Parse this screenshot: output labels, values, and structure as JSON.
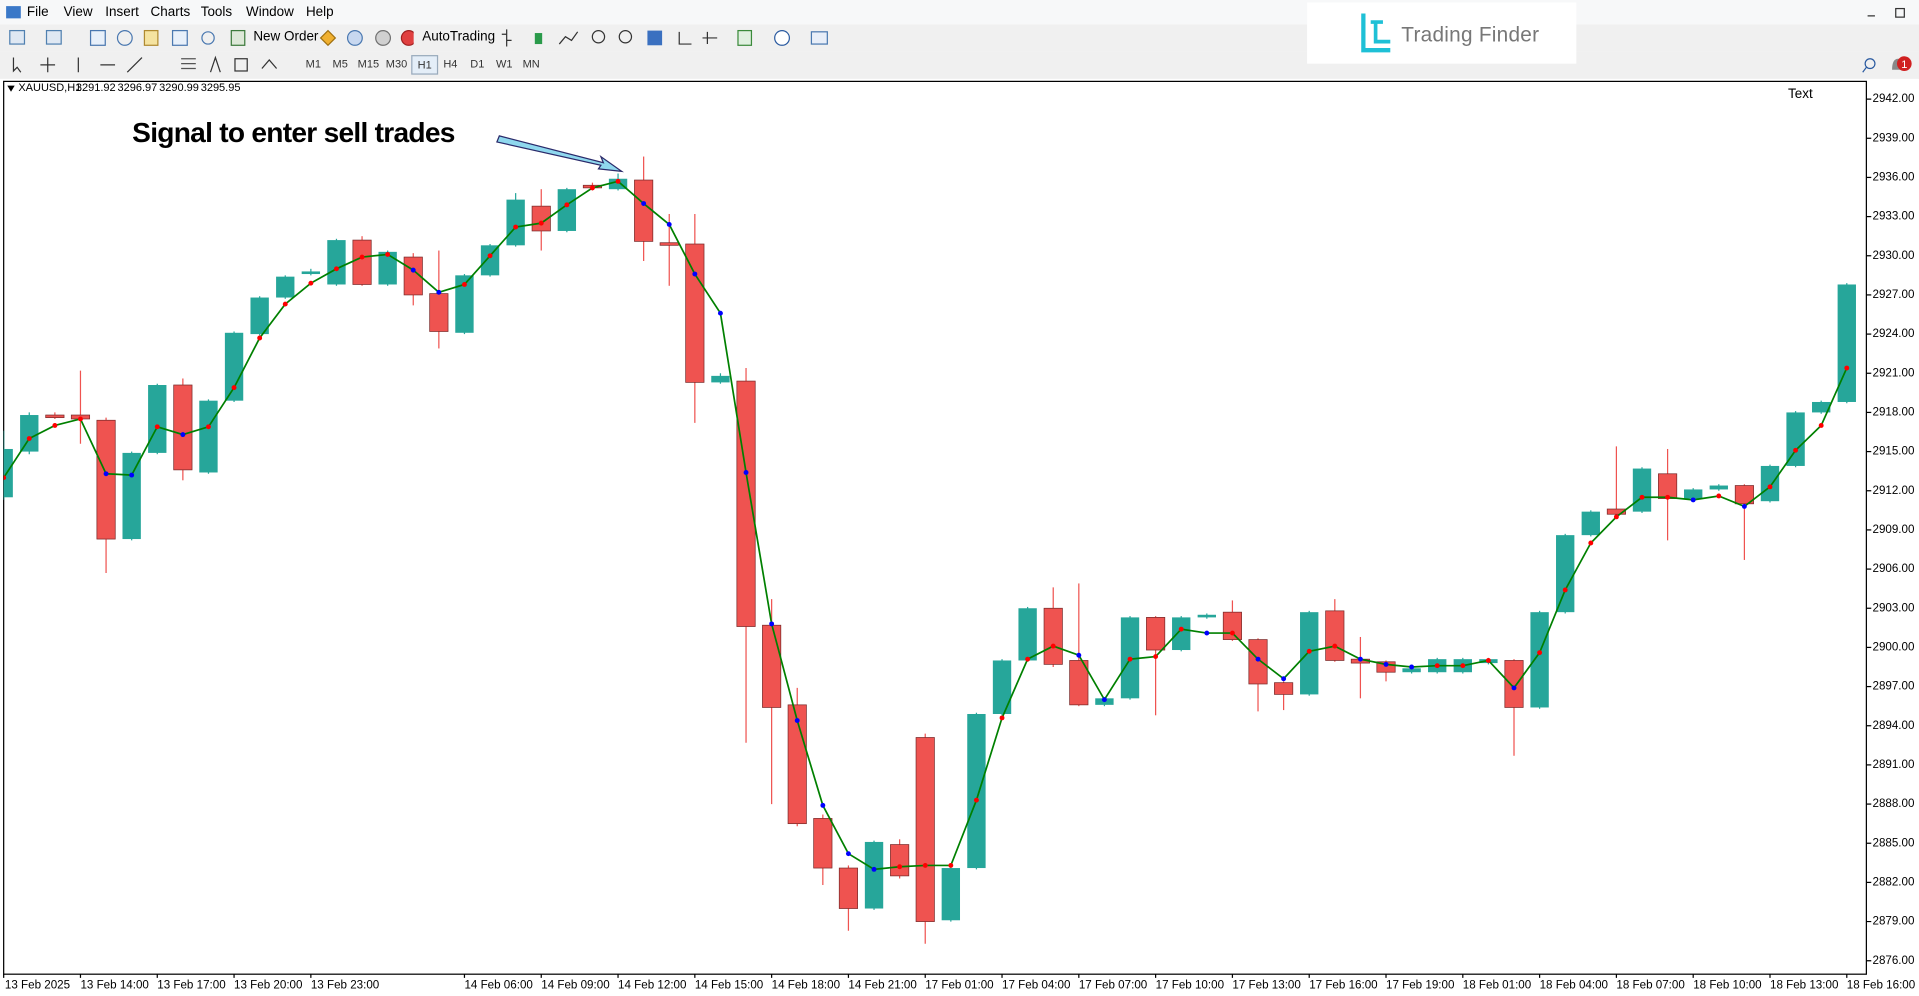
{
  "ui": {
    "menu": [
      "File",
      "View",
      "Insert",
      "Charts",
      "Tools",
      "Window",
      "Help"
    ],
    "new_order": "New Order",
    "autotrading": "AutoTrading",
    "timeframes": [
      "M1",
      "M5",
      "M15",
      "M30",
      "H1",
      "H4",
      "D1",
      "W1",
      "MN"
    ],
    "brand": "Trading Finder",
    "notifications": 1,
    "symbol": "XAUUSD,H1",
    "quote": [
      3291.92,
      3296.97,
      3290.99,
      3295.95
    ],
    "text_label": "Text"
  },
  "chart_data": {
    "type": "candlestick",
    "annotation": "Signal to enter sell trades",
    "categories": [
      "13 Feb 2025",
      null,
      null,
      "13 Feb 14:00",
      null,
      null,
      "13 Feb 17:00",
      null,
      null,
      "13 Feb 20:00",
      null,
      null,
      "13 Feb 23:00",
      null,
      null,
      null,
      null,
      null,
      "14 Feb 06:00",
      null,
      null,
      "14 Feb 09:00",
      null,
      null,
      "14 Feb 12:00",
      null,
      null,
      "14 Feb 15:00",
      null,
      null,
      "14 Feb 18:00",
      null,
      null,
      "14 Feb 21:00",
      null,
      null,
      "17 Feb 01:00",
      null,
      null,
      "17 Feb 04:00",
      null,
      null,
      "17 Feb 07:00",
      null,
      null,
      "17 Feb 10:00",
      null,
      null,
      "17 Feb 13:00",
      null,
      null,
      "17 Feb 16:00",
      null,
      null,
      "17 Feb 19:00",
      null,
      null,
      "18 Feb 01:00",
      null,
      null,
      "18 Feb 04:00",
      null,
      null,
      "18 Feb 07:00",
      null,
      null,
      "18 Feb 10:00",
      null,
      null,
      "18 Feb 13:00",
      null,
      null,
      "18 Feb 16:00"
    ],
    "open": [
      2911.5,
      2915.0,
      2917.8,
      2917.8,
      2917.4,
      2908.3,
      2914.9,
      2920.1,
      2913.4,
      2918.9,
      2924.0,
      2926.8,
      2928.6,
      2927.8,
      2931.2,
      2927.8,
      2929.9,
      2927.1,
      2924.1,
      2928.5,
      2930.8,
      2933.8,
      2931.9,
      2935.4,
      2935.1,
      2935.8,
      2931.0,
      2930.9,
      2920.3,
      2920.4,
      2901.7,
      2895.6,
      2886.9,
      2883.1,
      2880.0,
      2884.9,
      2893.1,
      2879.1,
      2883.1,
      2894.9,
      2899.0,
      2903.0,
      2899.0,
      2895.6,
      2896.1,
      2902.3,
      2899.8,
      2902.3,
      2902.7,
      2900.6,
      2897.3,
      2896.4,
      2902.8,
      2899.1,
      2898.9,
      2898.1,
      2898.1,
      2898.1,
      2898.8,
      2899.0,
      2895.4,
      2902.7,
      2908.6,
      2910.6,
      2910.4,
      2913.3,
      2911.4,
      2912.1,
      2912.4,
      2911.2,
      2913.9,
      2918.0,
      2918.8
    ],
    "high": [
      2916.6,
      2918.0,
      2918.0,
      2921.2,
      2917.6,
      2915.0,
      2920.2,
      2920.6,
      2919.0,
      2924.2,
      2926.9,
      2928.5,
      2929.0,
      2931.3,
      2931.5,
      2930.4,
      2930.2,
      2930.4,
      2928.6,
      2930.9,
      2934.8,
      2935.1,
      2935.2,
      2935.6,
      2936.3,
      2937.6,
      2933.2,
      2933.2,
      2921.0,
      2921.4,
      2903.7,
      2896.9,
      2887.2,
      2883.3,
      2885.2,
      2885.3,
      2893.4,
      2883.2,
      2895.0,
      2899.1,
      2903.1,
      2904.6,
      2904.9,
      2896.2,
      2902.4,
      2902.4,
      2902.4,
      2902.6,
      2903.6,
      2900.7,
      2897.4,
      2902.8,
      2903.7,
      2900.8,
      2899.0,
      2898.5,
      2899.2,
      2899.2,
      2899.2,
      2899.1,
      2902.8,
      2908.7,
      2910.5,
      2915.4,
      2913.8,
      2915.2,
      2912.2,
      2912.5,
      2912.5,
      2914.0,
      2918.1,
      2918.9,
      2927.9
    ],
    "low": [
      2911.3,
      2914.8,
      2917.5,
      2915.6,
      2905.7,
      2908.2,
      2914.8,
      2912.8,
      2913.3,
      2918.8,
      2923.9,
      2926.7,
      2928.5,
      2927.7,
      2927.7,
      2927.7,
      2926.2,
      2922.9,
      2924.0,
      2928.4,
      2930.7,
      2930.4,
      2931.8,
      2935.0,
      2935.0,
      2929.6,
      2927.7,
      2917.2,
      2920.2,
      2892.7,
      2888.0,
      2886.3,
      2881.8,
      2878.3,
      2879.9,
      2882.3,
      2877.3,
      2879.0,
      2883.0,
      2894.8,
      2898.9,
      2898.5,
      2895.5,
      2895.5,
      2896.0,
      2894.8,
      2899.7,
      2902.2,
      2900.5,
      2895.1,
      2895.2,
      2896.3,
      2898.9,
      2896.1,
      2897.4,
      2898.0,
      2898.0,
      2898.0,
      2898.7,
      2891.7,
      2895.3,
      2902.6,
      2908.5,
      2910.0,
      2910.3,
      2908.2,
      2911.3,
      2912.0,
      2906.7,
      2911.1,
      2913.8,
      2917.9,
      2918.7
    ],
    "close": [
      2915.2,
      2917.8,
      2917.6,
      2917.5,
      2908.3,
      2914.9,
      2920.1,
      2913.6,
      2918.9,
      2924.1,
      2926.8,
      2928.4,
      2928.8,
      2931.2,
      2927.8,
      2930.3,
      2927.0,
      2924.2,
      2928.5,
      2930.8,
      2934.3,
      2931.9,
      2935.1,
      2935.2,
      2935.9,
      2931.1,
      2930.8,
      2920.3,
      2920.8,
      2901.6,
      2895.4,
      2886.5,
      2883.1,
      2880.0,
      2885.1,
      2882.5,
      2879.0,
      2883.1,
      2894.9,
      2899.0,
      2903.0,
      2898.7,
      2895.6,
      2896.1,
      2902.3,
      2899.8,
      2902.3,
      2902.5,
      2900.6,
      2897.2,
      2896.4,
      2902.7,
      2899.0,
      2898.8,
      2898.1,
      2898.4,
      2899.1,
      2899.1,
      2899.1,
      2895.4,
      2902.7,
      2908.6,
      2910.4,
      2910.2,
      2913.7,
      2911.4,
      2912.1,
      2912.4,
      2911.0,
      2913.9,
      2918.0,
      2918.8,
      2927.8
    ],
    "up_color": "#26a69a",
    "down_color": "#ef5350",
    "line": {
      "values": [
        2913.0,
        2916.0,
        2917.0,
        2917.5,
        2913.3,
        2913.2,
        2916.9,
        2916.3,
        2916.9,
        2919.9,
        2923.7,
        2926.3,
        2927.9,
        2929.0,
        2929.9,
        2930.1,
        2928.9,
        2927.2,
        2927.8,
        2930.0,
        2932.2,
        2932.5,
        2933.9,
        2935.2,
        2935.7,
        2934.0,
        2932.4,
        2928.6,
        2925.6,
        2913.4,
        2901.8,
        2894.4,
        2887.9,
        2884.2,
        2883.0,
        2883.2,
        2883.3,
        2883.3,
        2888.3,
        2894.6,
        2899.1,
        2900.1,
        2899.4,
        2896.0,
        2899.1,
        2899.3,
        2901.4,
        2901.1,
        2901.1,
        2899.1,
        2897.6,
        2899.7,
        2900.1,
        2899.1,
        2898.7,
        2898.5,
        2898.6,
        2898.6,
        2899.0,
        2896.9,
        2899.6,
        2904.4,
        2908.0,
        2910.0,
        2911.5,
        2911.5,
        2911.3,
        2911.6,
        2910.8,
        2912.3,
        2915.1,
        2917.0,
        2921.4
      ],
      "color": "#008000",
      "rise_color": "#ff0000",
      "fall_color": "#0000ff"
    },
    "ylim": [
      2874.97,
      2943.31
    ],
    "yticks": [
      {
        "value": 2942,
        "label": "2942.00"
      },
      {
        "value": 2939,
        "label": "2939.00"
      },
      {
        "value": 2936,
        "label": "2936.00"
      },
      {
        "value": 2933,
        "label": "2933.00"
      },
      {
        "value": 2930,
        "label": "2930.00"
      },
      {
        "value": 2927,
        "label": "2927.00"
      },
      {
        "value": 2924,
        "label": "2924.00"
      },
      {
        "value": 2921,
        "label": "2921.00"
      },
      {
        "value": 2918,
        "label": "2918.00"
      },
      {
        "value": 2915,
        "label": "2915.00"
      },
      {
        "value": 2912,
        "label": "2912.00"
      },
      {
        "value": 2909,
        "label": "2909.00"
      },
      {
        "value": 2906,
        "label": "2906.00"
      },
      {
        "value": 2903,
        "label": "2903.00"
      },
      {
        "value": 2900,
        "label": "2900.00"
      },
      {
        "value": 2897,
        "label": "2897.00"
      },
      {
        "value": 2894,
        "label": "2894.00"
      },
      {
        "value": 2891,
        "label": "2891.00"
      },
      {
        "value": 2888,
        "label": "2888.00"
      },
      {
        "value": 2885,
        "label": "2885.00"
      },
      {
        "value": 2882,
        "label": "2882.00"
      },
      {
        "value": 2879,
        "label": "2879.00"
      },
      {
        "value": 2876,
        "label": "2876.00"
      }
    ]
  }
}
